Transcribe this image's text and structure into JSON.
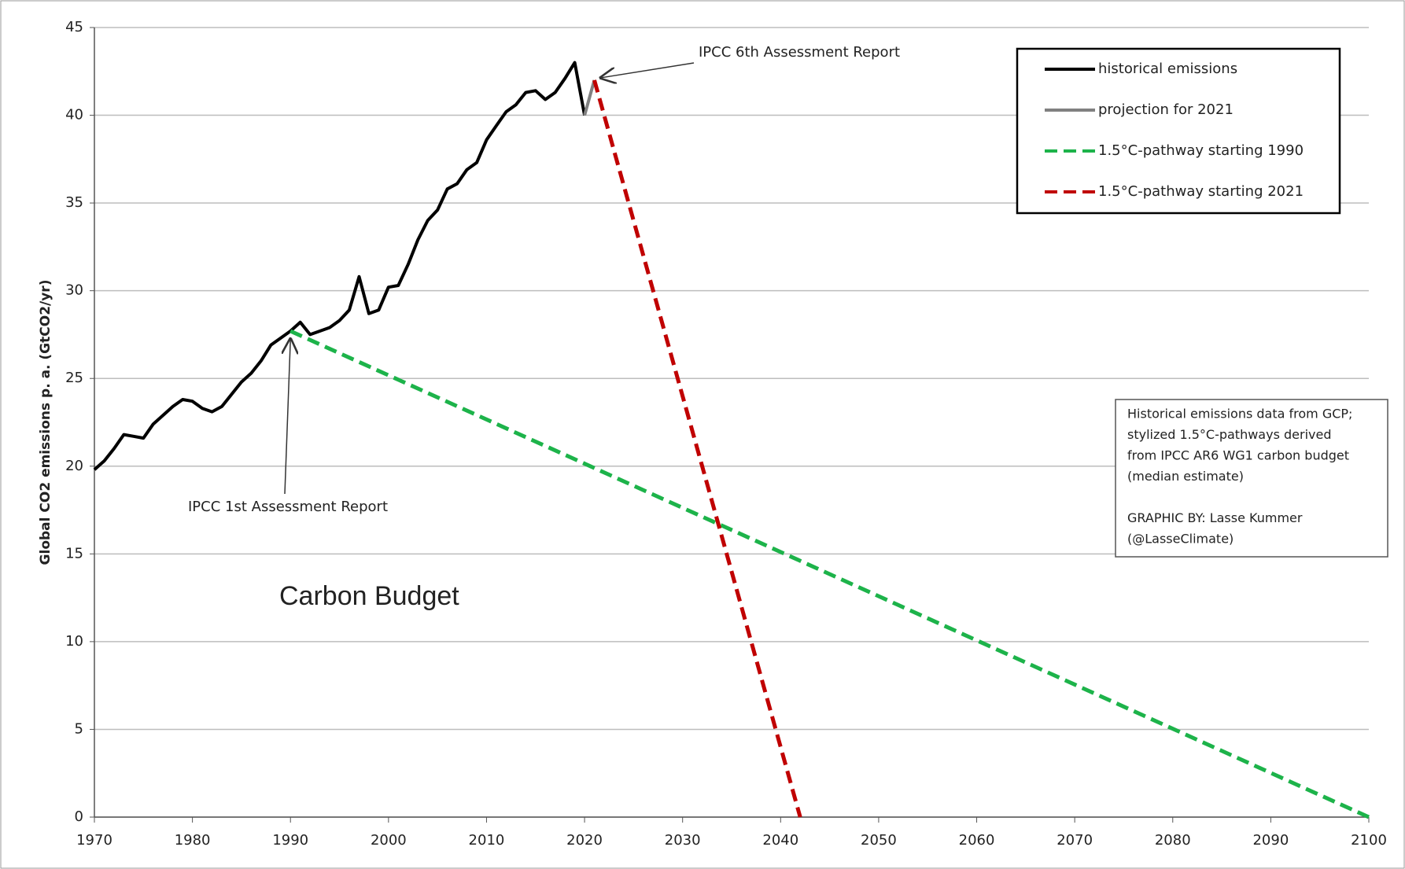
{
  "chart_data": {
    "type": "line",
    "y_label": "Global CO2 emissions p. a. (GtCO2/yr)",
    "xlim": [
      1970,
      2100
    ],
    "xticks": [
      1970,
      1980,
      1990,
      2000,
      2010,
      2020,
      2030,
      2040,
      2050,
      2060,
      2070,
      2080,
      2090,
      2100
    ],
    "ylim": [
      0,
      45
    ],
    "yticks": [
      0,
      5,
      10,
      15,
      20,
      25,
      30,
      35,
      40,
      45
    ],
    "grid": true,
    "legend": "upper right",
    "series": [
      {
        "name": "historical emissions",
        "color": "#000000",
        "dashed": false,
        "x": [
          1970,
          1971,
          1972,
          1973,
          1974,
          1975,
          1976,
          1977,
          1978,
          1979,
          1980,
          1981,
          1982,
          1983,
          1984,
          1985,
          1986,
          1987,
          1988,
          1989,
          1990,
          1991,
          1992,
          1993,
          1994,
          1995,
          1996,
          1997,
          1998,
          1999,
          2000,
          2001,
          2002,
          2003,
          2004,
          2005,
          2006,
          2007,
          2008,
          2009,
          2010,
          2011,
          2012,
          2013,
          2014,
          2015,
          2016,
          2017,
          2018,
          2019,
          2020
        ],
        "values": [
          19.8,
          20.3,
          21.0,
          21.8,
          21.7,
          21.6,
          22.4,
          22.9,
          23.4,
          23.8,
          23.7,
          23.3,
          23.1,
          23.4,
          24.1,
          24.8,
          25.3,
          26.0,
          26.9,
          27.3,
          27.7,
          28.2,
          27.5,
          27.7,
          27.9,
          28.3,
          28.9,
          30.8,
          28.7,
          28.9,
          30.2,
          30.3,
          31.5,
          32.9,
          34.0,
          34.6,
          35.8,
          36.1,
          36.9,
          37.3,
          38.6,
          39.4,
          40.2,
          40.6,
          41.3,
          41.4,
          40.9,
          41.3,
          42.1,
          43.0,
          40.0
        ]
      },
      {
        "name": "projection for 2021",
        "color": "#808080",
        "dashed": false,
        "x": [
          2020,
          2021
        ],
        "values": [
          40.0,
          42.0
        ]
      },
      {
        "name": "1.5°C-pathway starting 1990",
        "color": "#1db34a",
        "dashed": true,
        "x": [
          1990,
          2100
        ],
        "values": [
          27.7,
          0
        ]
      },
      {
        "name": "1.5°C-pathway starting 2021",
        "color": "#c00000",
        "dashed": true,
        "x": [
          2021,
          2042
        ],
        "values": [
          42.0,
          0
        ]
      }
    ],
    "annotations": [
      {
        "text": "IPCC 6th Assessment Report"
      },
      {
        "text": "IPCC 1st Assessment Report"
      },
      {
        "text": "Carbon Budget"
      }
    ],
    "note": [
      "Historical emissions data from GCP;",
      "stylized 1.5°C-pathways derived",
      "from IPCC AR6 WG1 carbon budget",
      "(median estimate)",
      "",
      "GRAPHIC BY: Lasse Kummer",
      "(@LasseClimate)"
    ]
  }
}
